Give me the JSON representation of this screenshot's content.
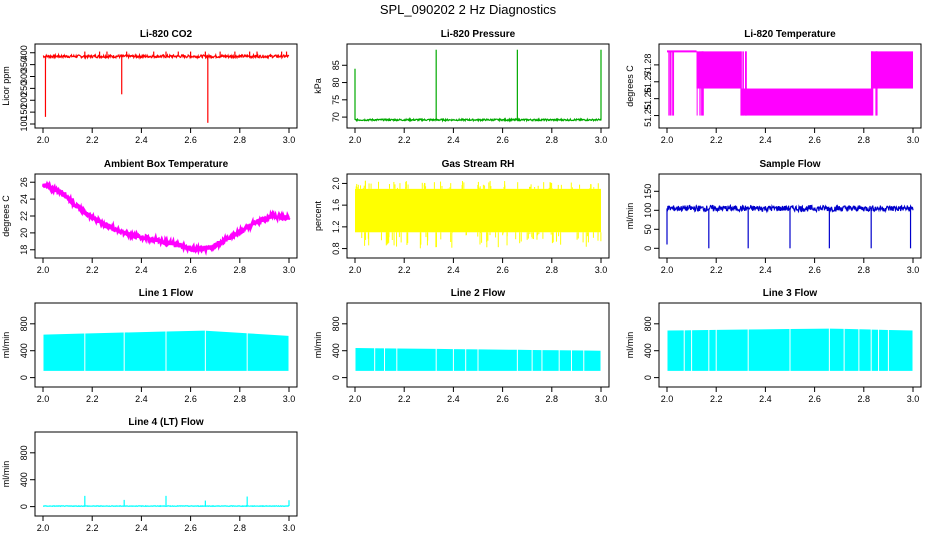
{
  "page": {
    "title": "SPL_090202  2 Hz Diagnostics"
  },
  "chart_data": [
    {
      "type": "line",
      "title": "Li-820 CO2",
      "ylabel": "Licor ppm",
      "color": "#ff0000",
      "xlim": [
        2.0,
        3.0
      ],
      "ylim": [
        100,
        420
      ],
      "xticks": [
        "2.0",
        "2.2",
        "2.4",
        "2.6",
        "2.8",
        "3.0"
      ],
      "yticks": [
        "100",
        "150",
        "200",
        "250",
        "300",
        "350",
        "400"
      ],
      "series": [
        {
          "kind": "spiky",
          "base": 385,
          "noise": 6,
          "spikes": [
            [
              2.01,
              130
            ],
            [
              2.17,
              405
            ],
            [
              2.23,
              405
            ],
            [
              2.26,
              405
            ],
            [
              2.32,
              225
            ],
            [
              2.34,
              405
            ],
            [
              2.45,
              405
            ],
            [
              2.5,
              405
            ],
            [
              2.55,
              405
            ],
            [
              2.6,
              405
            ],
            [
              2.66,
              405
            ],
            [
              2.67,
              105
            ],
            [
              2.72,
              405
            ],
            [
              2.78,
              405
            ],
            [
              2.84,
              405
            ],
            [
              2.87,
              405
            ],
            [
              2.97,
              405
            ],
            [
              2.99,
              405
            ]
          ]
        }
      ]
    },
    {
      "type": "line",
      "title": "Li-820 Pressure",
      "ylabel": "kPa",
      "color": "#00aa00",
      "xlim": [
        2.0,
        3.0
      ],
      "ylim": [
        68.0,
        90.0
      ],
      "xticks": [
        "2.0",
        "2.2",
        "2.4",
        "2.6",
        "2.8",
        "3.0"
      ],
      "yticks": [
        "70",
        "75",
        "80",
        "85"
      ],
      "series": [
        {
          "kind": "spiky",
          "base": 69.2,
          "noise": 0.25,
          "spikes": [
            [
              2.0,
              84
            ],
            [
              2.33,
              89.5
            ],
            [
              2.66,
              89.5
            ],
            [
              3.0,
              89.5
            ]
          ]
        }
      ]
    },
    {
      "type": "line",
      "title": "Li-820 Temperature",
      "ylabel": "degrees C",
      "color": "#ff00ff",
      "xlim": [
        2.0,
        3.0
      ],
      "ylim": [
        51.245,
        51.29
      ],
      "xticks": [
        "2.0",
        "2.2",
        "2.4",
        "2.6",
        "2.8",
        "3.0"
      ],
      "yticks": [
        "51.25",
        "51.26",
        "51.27",
        "51.28"
      ],
      "series": [
        {
          "kind": "step",
          "low": 51.25,
          "mid": 51.266,
          "high": 51.288,
          "segments": [
            [
              2.0,
              2.12,
              "high"
            ],
            [
              2.12,
              2.3,
              "band"
            ],
            [
              2.3,
              2.83,
              "lowband"
            ],
            [
              2.83,
              3.0,
              "band"
            ]
          ]
        }
      ]
    },
    {
      "type": "line",
      "title": "Ambient Box Temperature",
      "ylabel": "degrees C",
      "color": "#ff00ff",
      "xlim": [
        2.0,
        3.0
      ],
      "ylim": [
        17.5,
        26.5
      ],
      "xticks": [
        "2.0",
        "2.2",
        "2.4",
        "2.6",
        "2.8",
        "3.0"
      ],
      "yticks": [
        "18",
        "20",
        "22",
        "24",
        "26"
      ],
      "series": [
        {
          "kind": "curve",
          "noise": 0.25,
          "points": [
            [
              2.0,
              25.6
            ],
            [
              2.08,
              24.8
            ],
            [
              2.15,
              22.8
            ],
            [
              2.25,
              21.0
            ],
            [
              2.35,
              19.8
            ],
            [
              2.45,
              19.2
            ],
            [
              2.55,
              18.6
            ],
            [
              2.63,
              18.0
            ],
            [
              2.68,
              18.2
            ],
            [
              2.75,
              19.3
            ],
            [
              2.85,
              21.0
            ],
            [
              2.93,
              22.0
            ],
            [
              3.0,
              21.8
            ]
          ]
        }
      ]
    },
    {
      "type": "line",
      "title": "Gas Stream RH",
      "ylabel": "percent",
      "color": "#ffff00",
      "xlim": [
        2.0,
        3.0
      ],
      "ylim": [
        0.7,
        2.1
      ],
      "xticks": [
        "2.0",
        "2.2",
        "2.4",
        "2.6",
        "2.8",
        "3.0"
      ],
      "yticks": [
        "0.8",
        "1.2",
        "1.6",
        "2.0"
      ],
      "series": [
        {
          "kind": "band",
          "low": 1.1,
          "high": 1.9,
          "min": 0.8,
          "max": 2.05
        }
      ]
    },
    {
      "type": "line",
      "title": "Sample Flow",
      "ylabel": "ml/min",
      "color": "#0000cc",
      "xlim": [
        2.0,
        3.0
      ],
      "ylim": [
        -15,
        185
      ],
      "xticks": [
        "2.0",
        "2.2",
        "2.4",
        "2.6",
        "2.8",
        "3.0"
      ],
      "yticks": [
        "0",
        "50",
        "100",
        "150"
      ],
      "series": [
        {
          "kind": "flow",
          "base": 105,
          "noise": 8,
          "dips": [
            [
              2.0,
              10
            ],
            [
              2.17,
              0
            ],
            [
              2.33,
              0
            ],
            [
              2.5,
              0
            ],
            [
              2.66,
              0
            ],
            [
              2.83,
              0
            ],
            [
              2.99,
              0
            ]
          ]
        }
      ]
    },
    {
      "type": "line",
      "title": "Line 1 Flow",
      "ylabel": "ml/min",
      "color": "#00ffff",
      "xlim": [
        2.0,
        3.0
      ],
      "ylim": [
        -80,
        1050
      ],
      "xticks": [
        "2.0",
        "2.2",
        "2.4",
        "2.6",
        "2.8",
        "3.0"
      ],
      "yticks": [
        "0",
        "400",
        "800"
      ],
      "series": [
        {
          "kind": "block",
          "low": 100,
          "high": 640,
          "rise": [
            2.0,
            640,
            2.65,
            700,
            3.0,
            620
          ],
          "gaps": [
            2.17,
            2.33,
            2.5,
            2.66,
            2.83
          ]
        }
      ]
    },
    {
      "type": "line",
      "title": "Line 2 Flow",
      "ylabel": "ml/min",
      "color": "#00ffff",
      "xlim": [
        2.0,
        3.0
      ],
      "ylim": [
        -80,
        1050
      ],
      "xticks": [
        "2.0",
        "2.2",
        "2.4",
        "2.6",
        "2.8",
        "3.0"
      ],
      "yticks": [
        "0",
        "400",
        "800"
      ],
      "series": [
        {
          "kind": "block",
          "low": 100,
          "high": 430,
          "rise": [
            2.0,
            440,
            3.0,
            400
          ],
          "gaps": [
            2.08,
            2.12,
            2.17,
            2.33,
            2.4,
            2.45,
            2.5,
            2.66,
            2.72,
            2.76,
            2.83,
            2.88,
            2.93
          ]
        }
      ]
    },
    {
      "type": "line",
      "title": "Line 3 Flow",
      "ylabel": "ml/min",
      "color": "#00ffff",
      "xlim": [
        2.0,
        3.0
      ],
      "ylim": [
        -80,
        1050
      ],
      "xticks": [
        "2.0",
        "2.2",
        "2.4",
        "2.6",
        "2.8",
        "3.0"
      ],
      "yticks": [
        "0",
        "400",
        "800"
      ],
      "series": [
        {
          "kind": "block",
          "low": 100,
          "high": 700,
          "rise": [
            2.0,
            700,
            2.65,
            730,
            3.0,
            700
          ],
          "gaps": [
            2.07,
            2.1,
            2.17,
            2.2,
            2.33,
            2.5,
            2.66,
            2.72,
            2.78,
            2.83,
            2.86,
            2.9
          ]
        }
      ]
    },
    {
      "type": "line",
      "title": "Line 4 (LT) Flow",
      "ylabel": "ml/min",
      "color": "#00ffff",
      "xlim": [
        2.0,
        3.0
      ],
      "ylim": [
        -80,
        1050
      ],
      "xticks": [
        "2.0",
        "2.2",
        "2.4",
        "2.6",
        "2.8",
        "3.0"
      ],
      "yticks": [
        "0",
        "400",
        "800"
      ],
      "series": [
        {
          "kind": "spiky",
          "base": 8,
          "noise": 4,
          "spikes": [
            [
              2.17,
              160
            ],
            [
              2.33,
              100
            ],
            [
              2.5,
              160
            ],
            [
              2.66,
              90
            ],
            [
              2.83,
              150
            ],
            [
              3.0,
              95
            ]
          ]
        }
      ]
    }
  ]
}
